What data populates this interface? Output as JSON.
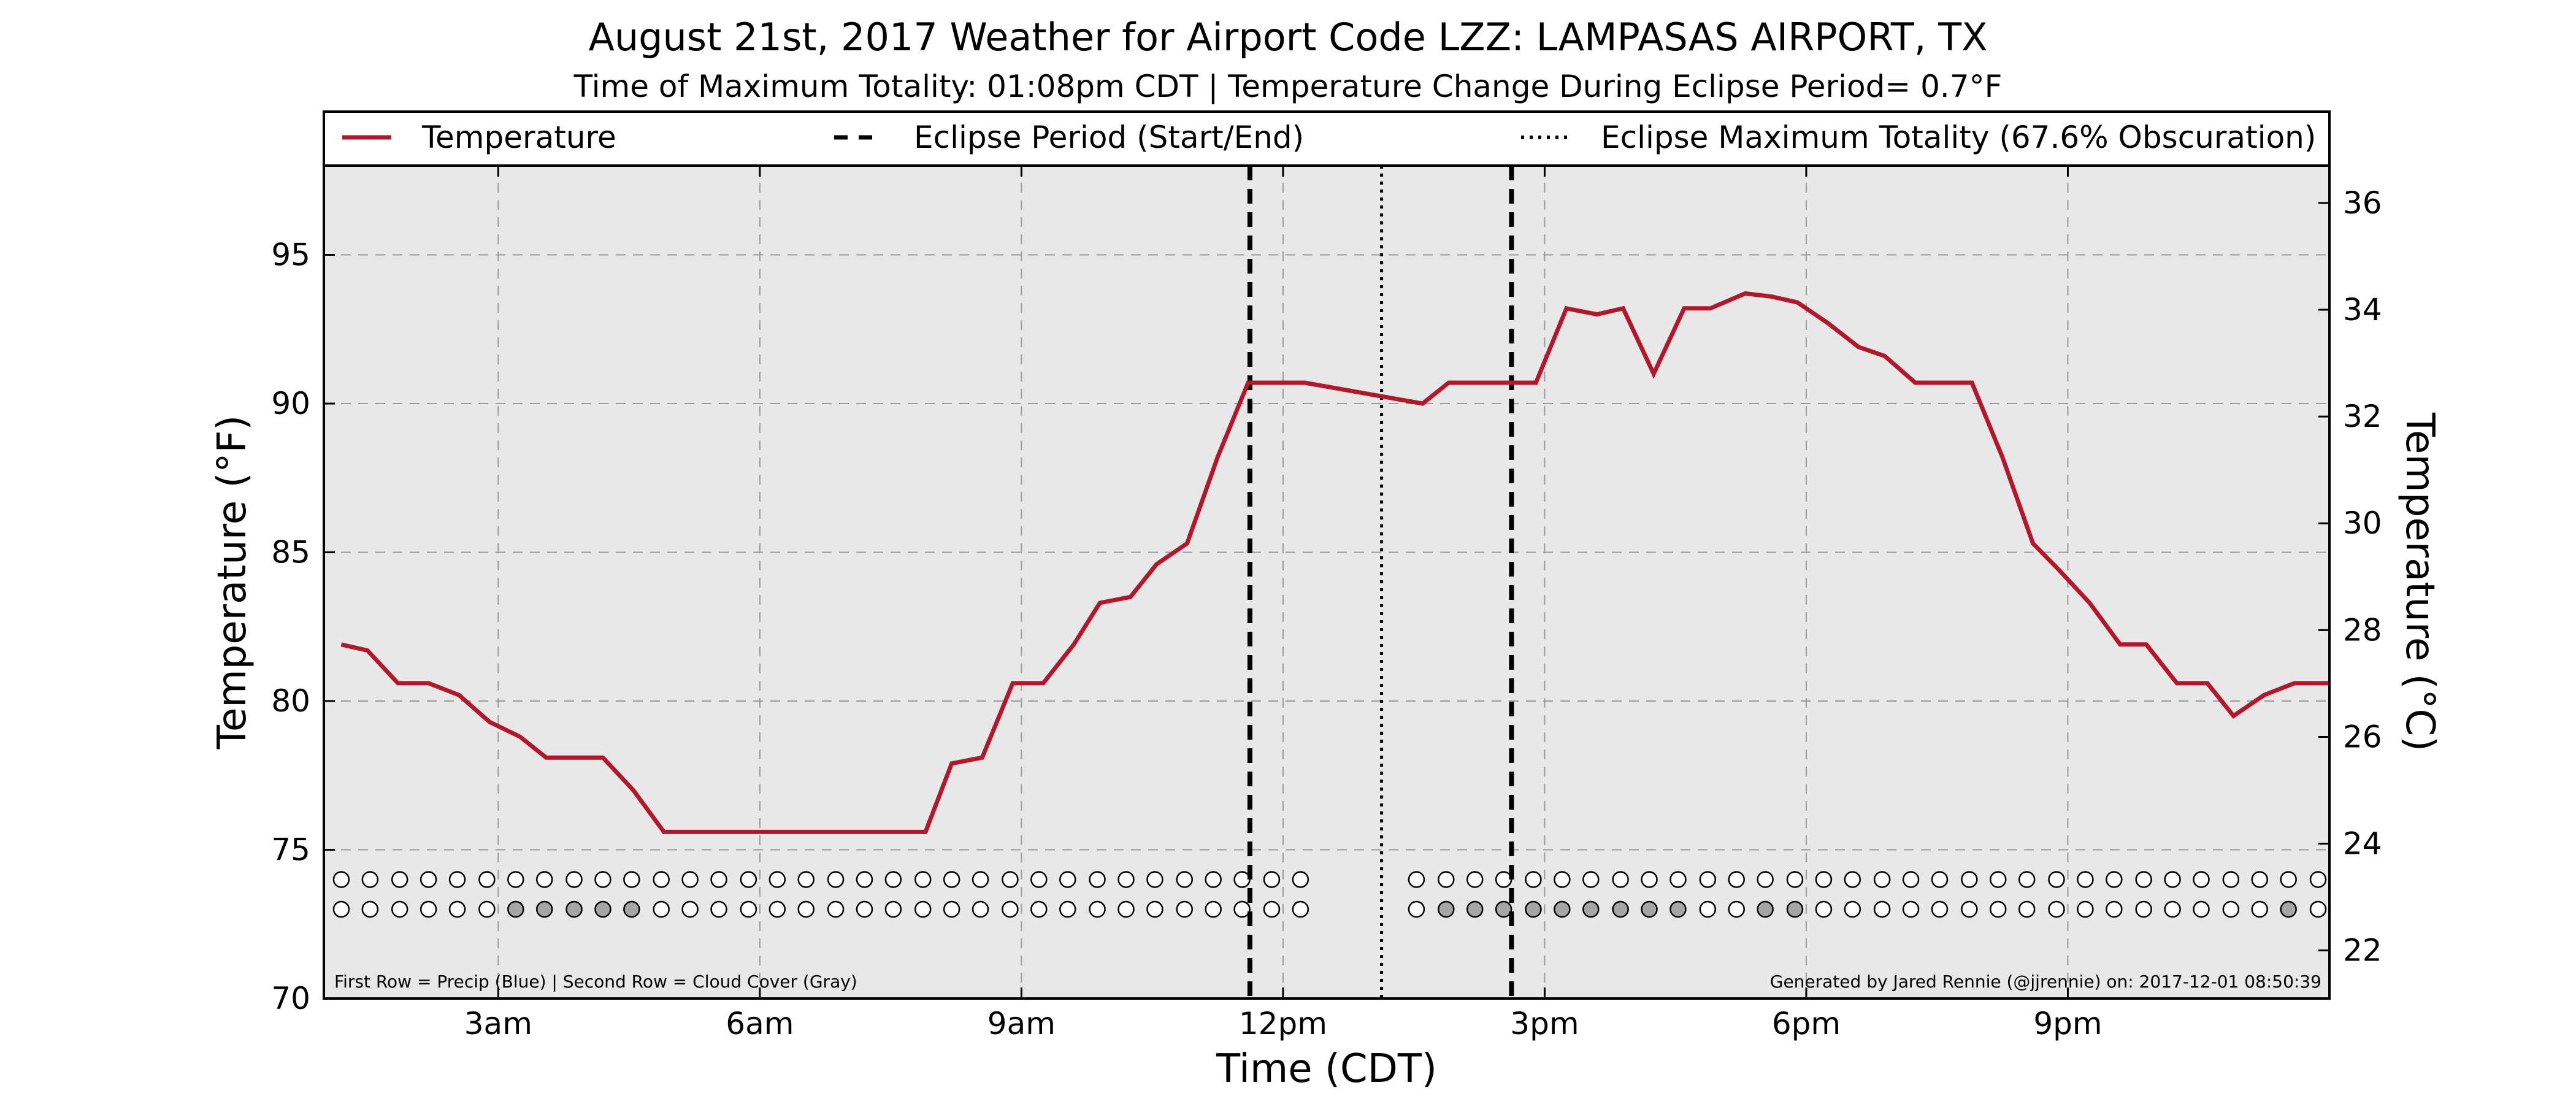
{
  "chart_data": {
    "type": "line",
    "title": "August 21st, 2017 Weather for Airport Code LZZ: LAMPASAS AIRPORT, TX",
    "subtitle": "Time of Maximum Totality: 01:08pm CDT | Temperature Change During Eclipse Period= 0.7°F",
    "xlabel": "Time (CDT)",
    "ylabel_left": "Temperature (°F)",
    "ylabel_right": "Temperature (°C)",
    "x_unit": "hours after midnight (CDT)",
    "xlim": [
      1.0,
      24.0
    ],
    "ylim": [
      70,
      98
    ],
    "ylim_right_c": [
      21.1,
      36.7
    ],
    "x_ticks": [
      {
        "value": 3,
        "label": "3am"
      },
      {
        "value": 6,
        "label": "6am"
      },
      {
        "value": 9,
        "label": "9am"
      },
      {
        "value": 12,
        "label": "12pm"
      },
      {
        "value": 15,
        "label": "3pm"
      },
      {
        "value": 18,
        "label": "6pm"
      },
      {
        "value": 21,
        "label": "9pm"
      }
    ],
    "y_ticks_left": [
      {
        "value": 70,
        "label": "70"
      },
      {
        "value": 75,
        "label": "75"
      },
      {
        "value": 80,
        "label": "80"
      },
      {
        "value": 85,
        "label": "85"
      },
      {
        "value": 90,
        "label": "90"
      },
      {
        "value": 95,
        "label": "95"
      }
    ],
    "y_ticks_right": [
      {
        "value": 22,
        "label": "22"
      },
      {
        "value": 24,
        "label": "24"
      },
      {
        "value": 26,
        "label": "26"
      },
      {
        "value": 28,
        "label": "28"
      },
      {
        "value": 30,
        "label": "30"
      },
      {
        "value": 32,
        "label": "32"
      },
      {
        "value": 34,
        "label": "34"
      },
      {
        "value": 36,
        "label": "36"
      }
    ],
    "grid": true,
    "legend_position": "top",
    "legend": [
      {
        "label": "Temperature",
        "style": "solid",
        "color": "#b2182b"
      },
      {
        "label": "Eclipse Period (Start/End)",
        "style": "dashed",
        "color": "#000000"
      },
      {
        "label": "Eclipse Maximum Totality (67.6% Obscuration)",
        "style": "dotted",
        "color": "#000000"
      }
    ],
    "series": [
      {
        "name": "Temperature",
        "color": "#b2182b",
        "points": [
          [
            1.2,
            81.9
          ],
          [
            1.5,
            81.7
          ],
          [
            1.85,
            80.6
          ],
          [
            2.2,
            80.6
          ],
          [
            2.55,
            80.2
          ],
          [
            2.9,
            79.3
          ],
          [
            3.25,
            78.8
          ],
          [
            3.55,
            78.1
          ],
          [
            3.9,
            78.1
          ],
          [
            4.2,
            78.1
          ],
          [
            4.55,
            77.0
          ],
          [
            4.9,
            75.6
          ],
          [
            7.9,
            75.6
          ],
          [
            8.2,
            77.9
          ],
          [
            8.55,
            78.1
          ],
          [
            8.9,
            80.6
          ],
          [
            9.25,
            80.6
          ],
          [
            9.6,
            81.9
          ],
          [
            9.9,
            83.3
          ],
          [
            10.25,
            83.5
          ],
          [
            10.55,
            84.6
          ],
          [
            10.9,
            85.3
          ],
          [
            11.25,
            88.2
          ],
          [
            11.6,
            90.7
          ],
          [
            12.25,
            90.7
          ],
          [
            13.6,
            90.0
          ],
          [
            13.9,
            90.7
          ],
          [
            14.9,
            90.7
          ],
          [
            15.25,
            93.2
          ],
          [
            15.6,
            93.0
          ],
          [
            15.9,
            93.2
          ],
          [
            16.25,
            91.0
          ],
          [
            16.6,
            93.2
          ],
          [
            16.9,
            93.2
          ],
          [
            17.3,
            93.7
          ],
          [
            17.6,
            93.6
          ],
          [
            17.9,
            93.4
          ],
          [
            18.25,
            92.7
          ],
          [
            18.6,
            91.9
          ],
          [
            18.9,
            91.6
          ],
          [
            19.25,
            90.7
          ],
          [
            19.9,
            90.7
          ],
          [
            20.25,
            88.2
          ],
          [
            20.6,
            85.3
          ],
          [
            20.9,
            84.4
          ],
          [
            21.25,
            83.3
          ],
          [
            21.6,
            81.9
          ],
          [
            21.9,
            81.9
          ],
          [
            22.25,
            80.6
          ],
          [
            22.6,
            80.6
          ],
          [
            22.9,
            79.5
          ],
          [
            23.25,
            80.2
          ],
          [
            23.6,
            80.6
          ],
          [
            24.0,
            80.6
          ]
        ]
      }
    ],
    "eclipse": {
      "start": 11.62,
      "end": 14.62,
      "max_totality": 13.13,
      "max_totality_label": "01:08pm CDT",
      "obscuration": "67.6%"
    },
    "indicator_rows": {
      "first_row_value": 74.0,
      "second_row_value": 73.0,
      "times": [
        1.2,
        1.53,
        1.87,
        2.2,
        2.53,
        2.87,
        3.2,
        3.53,
        3.87,
        4.2,
        4.53,
        4.87,
        5.2,
        5.53,
        5.87,
        6.2,
        6.53,
        6.87,
        7.2,
        7.53,
        7.87,
        8.2,
        8.53,
        8.87,
        9.2,
        9.53,
        9.87,
        10.2,
        10.53,
        10.87,
        11.2,
        11.53,
        11.87,
        12.2,
        13.53,
        13.87,
        14.2,
        14.53,
        14.87,
        15.2,
        15.53,
        15.87,
        16.2,
        16.53,
        16.87,
        17.2,
        17.53,
        17.87,
        18.2,
        18.53,
        18.87,
        19.2,
        19.53,
        19.87,
        20.2,
        20.53,
        20.87,
        21.2,
        21.53,
        21.87,
        22.2,
        22.53,
        22.87,
        23.2,
        23.53,
        23.87
      ],
      "precip": [
        0,
        0,
        0,
        0,
        0,
        0,
        0,
        0,
        0,
        0,
        0,
        0,
        0,
        0,
        0,
        0,
        0,
        0,
        0,
        0,
        0,
        0,
        0,
        0,
        0,
        0,
        0,
        0,
        0,
        0,
        0,
        0,
        0,
        0,
        0,
        0,
        0,
        0,
        0,
        0,
        0,
        0,
        0,
        0,
        0,
        0,
        0,
        0,
        0,
        0,
        0,
        0,
        0,
        0,
        0,
        0,
        0,
        0,
        0,
        0,
        0,
        0,
        0,
        0,
        0,
        0
      ],
      "cloud": [
        0,
        0,
        0,
        0,
        0,
        0,
        1,
        1,
        1,
        1,
        1,
        0,
        0,
        0,
        0,
        0,
        0,
        0,
        0,
        0,
        0,
        0,
        0,
        0,
        0,
        0,
        0,
        0,
        0,
        0,
        0,
        0,
        0,
        0,
        0,
        1,
        1,
        1,
        1,
        1,
        1,
        1,
        1,
        1,
        0,
        0,
        1,
        1,
        0,
        0,
        0,
        0,
        0,
        0,
        0,
        0,
        0,
        0,
        0,
        0,
        0,
        0,
        0,
        0,
        1,
        0
      ],
      "empty_color": "#ffffff",
      "precip_color": "#4a7fcf",
      "cloud_color": "#a6a6a6"
    },
    "footnote_left": "First Row = Precip (Blue) | Second Row = Cloud Cover (Gray)",
    "footnote_right": "Generated by Jared Rennie (@jjrennie) on: 2017-12-01 08:50:39"
  }
}
